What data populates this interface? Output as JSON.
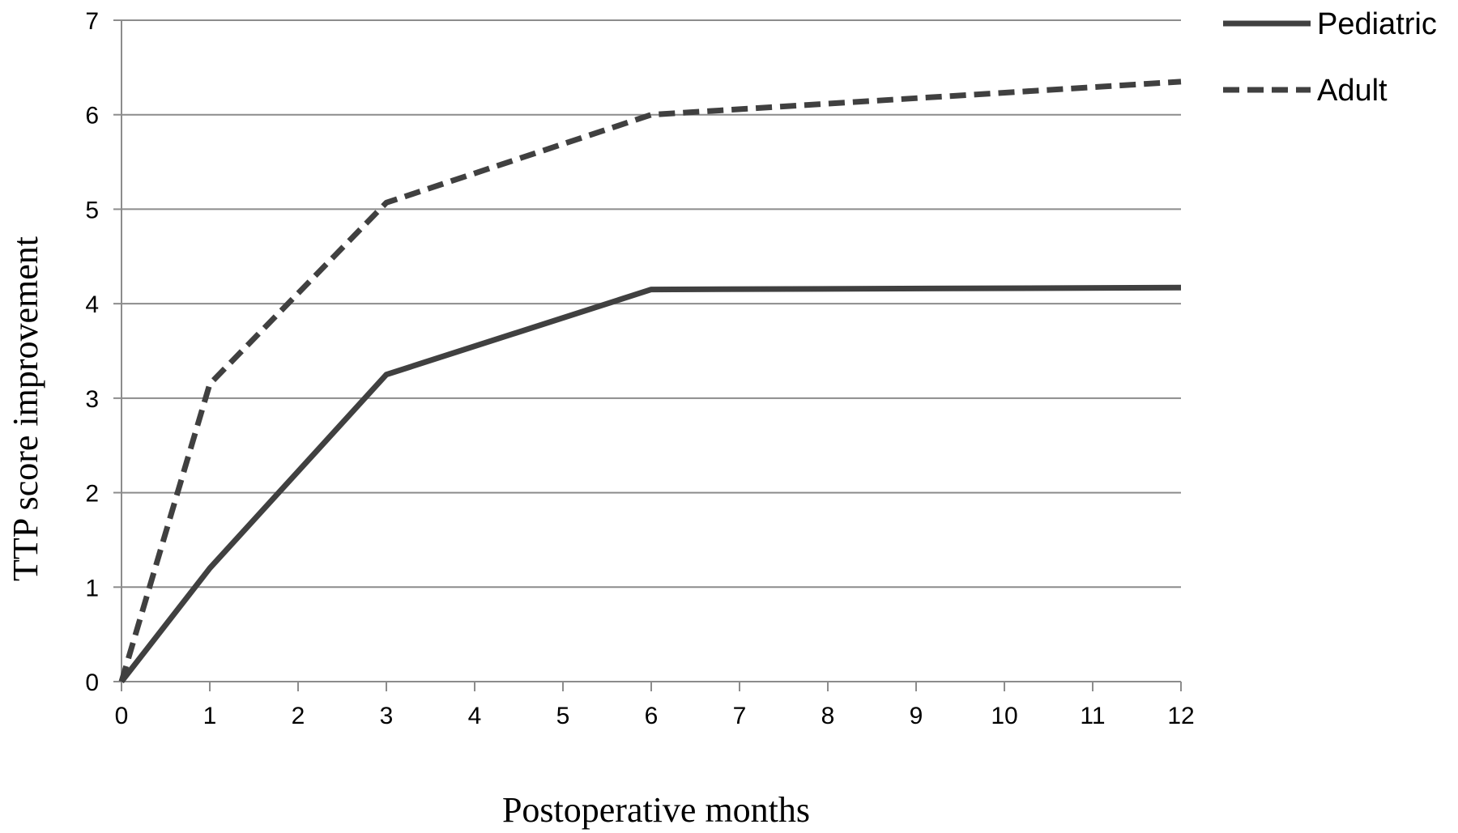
{
  "chart_data": {
    "type": "line",
    "title": "",
    "xlabel": "Postoperative months",
    "ylabel": "TTP score improvement",
    "x": [
      0,
      1,
      2,
      3,
      4,
      5,
      6,
      7,
      8,
      9,
      10,
      11,
      12
    ],
    "x_tick_labels": [
      "0",
      "1",
      "2",
      "3",
      "4",
      "5",
      "6",
      "7",
      "8",
      "9",
      "10",
      "11",
      "12"
    ],
    "y_tick_labels": [
      "0",
      "1",
      "2",
      "3",
      "4",
      "5",
      "6",
      "7"
    ],
    "xlim": [
      0,
      12
    ],
    "ylim": [
      0,
      7
    ],
    "grid": "horizontal",
    "legend_position": "top-right",
    "series": [
      {
        "name": "Pediatric",
        "style": "solid",
        "color": "#404040",
        "points": [
          [
            0,
            0
          ],
          [
            1,
            1.2
          ],
          [
            3,
            3.25
          ],
          [
            6,
            4.15
          ],
          [
            12,
            4.17
          ]
        ]
      },
      {
        "name": "Adult",
        "style": "dashed",
        "color": "#404040",
        "points": [
          [
            0,
            0
          ],
          [
            1,
            3.15
          ],
          [
            3,
            5.07
          ],
          [
            6,
            6.0
          ],
          [
            12,
            6.35
          ]
        ]
      }
    ]
  }
}
